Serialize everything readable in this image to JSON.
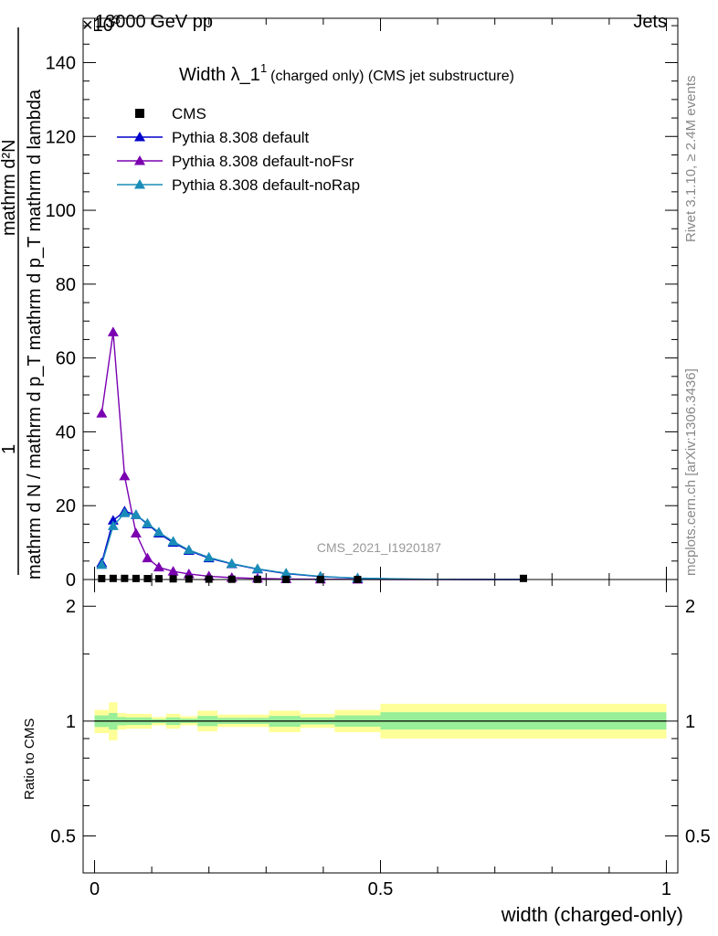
{
  "header": {
    "left": "13000 GeV pp",
    "right": "Jets",
    "exponent": "×10",
    "exponent_power": "3"
  },
  "side_texts": {
    "rivet": "Rivet 3.1.10, ≥ 2.4M events",
    "mcplots": "mcplots.cern.ch [arXiv:1306.3436]"
  },
  "analysis_label": "CMS_2021_I1920187",
  "colors": {
    "cms": "#000000",
    "default": "#0000cc",
    "noFsr": "#7a00b0",
    "noRap": "#1a8cb8",
    "band_outer": "#ffff99",
    "band_inner": "#99ee99",
    "analysis_label": "#999999",
    "side_text": "#888888"
  },
  "chart_data": [
    {
      "type": "line",
      "panel": "main",
      "title_main": "Width λ_1",
      "title_sup": "1",
      "title_rest": "(charged only) (CMS jet substructure)",
      "ylabel_numerator": "1",
      "ylabel_denominator": "mathrm d N / mathrm d p_T mathrm d p_T mathrm d lambda",
      "ylabel_full": "mathrm d²N",
      "ylim": [
        0,
        152
      ],
      "xlim": [
        -0.02,
        1.02
      ],
      "yticks": [
        0,
        20,
        40,
        60,
        80,
        100,
        120,
        140
      ],
      "legend_position": "top-left",
      "series": [
        {
          "name": "CMS",
          "marker": "square",
          "x": [
            0.0125,
            0.0325,
            0.0525,
            0.0725,
            0.0925,
            0.1125,
            0.1375,
            0.165,
            0.2,
            0.24,
            0.285,
            0.335,
            0.395,
            0.46,
            0.75
          ],
          "y": [
            0.25,
            0.3,
            0.3,
            0.28,
            0.25,
            0.22,
            0.18,
            0.14,
            0.1,
            0.07,
            0.05,
            0.03,
            0.02,
            0.01,
            0.3
          ]
        },
        {
          "name": "Pythia 8.308 default",
          "marker": "triangle",
          "x": [
            0.0125,
            0.0325,
            0.0525,
            0.0725,
            0.0925,
            0.1125,
            0.1375,
            0.165,
            0.2,
            0.24,
            0.285,
            0.335,
            0.395,
            0.46,
            0.55,
            0.65,
            0.75
          ],
          "y": [
            4.5,
            16.0,
            18.5,
            17.5,
            15.0,
            12.5,
            10.0,
            7.8,
            5.8,
            4.2,
            2.8,
            1.6,
            0.8,
            0.35,
            0.1,
            0.02,
            0.0
          ]
        },
        {
          "name": "Pythia 8.308 default-noFsr",
          "marker": "triangle",
          "x": [
            0.0125,
            0.0325,
            0.0525,
            0.0725,
            0.0925,
            0.1125,
            0.1375,
            0.165,
            0.2,
            0.24,
            0.285,
            0.335,
            0.395,
            0.46,
            0.55,
            0.65,
            0.75
          ],
          "y": [
            45.0,
            67.0,
            28.0,
            12.5,
            5.8,
            3.3,
            2.2,
            1.5,
            0.9,
            0.5,
            0.3,
            0.15,
            0.07,
            0.03,
            0.01,
            0.0,
            0.0
          ]
        },
        {
          "name": "Pythia 8.308 default-noRap",
          "marker": "triangle",
          "x": [
            0.0125,
            0.0325,
            0.0525,
            0.0725,
            0.0925,
            0.1125,
            0.1375,
            0.165,
            0.2,
            0.24,
            0.285,
            0.335,
            0.395,
            0.46,
            0.55,
            0.65,
            0.75
          ],
          "y": [
            4.0,
            14.5,
            18.0,
            17.5,
            15.2,
            12.8,
            10.3,
            8.0,
            6.0,
            4.3,
            2.9,
            1.7,
            0.85,
            0.38,
            0.12,
            0.03,
            0.0
          ]
        }
      ]
    },
    {
      "type": "area",
      "panel": "ratio",
      "ylabel": "Ratio to CMS",
      "xlabel": "width (charged-only)",
      "ylim": [
        0.4,
        2.35
      ],
      "yscale": "log",
      "yticks": [
        0.5,
        1,
        2
      ],
      "ytick_labels": [
        "0.5",
        "1",
        "2"
      ],
      "xticks": [
        0,
        0.5,
        1
      ],
      "xtick_labels": [
        "0",
        "0.5",
        "1"
      ],
      "bins": [
        {
          "x0": 0.0,
          "x1": 0.025,
          "outer": [
            0.93,
            1.07
          ],
          "inner": [
            0.965,
            1.035
          ]
        },
        {
          "x0": 0.025,
          "x1": 0.04,
          "outer": [
            0.89,
            1.12
          ],
          "inner": [
            0.95,
            1.05
          ]
        },
        {
          "x0": 0.04,
          "x1": 0.055,
          "outer": [
            0.95,
            1.05
          ],
          "inner": [
            0.975,
            1.025
          ]
        },
        {
          "x0": 0.055,
          "x1": 0.1,
          "outer": [
            0.955,
            1.045
          ],
          "inner": [
            0.977,
            1.022
          ]
        },
        {
          "x0": 0.1,
          "x1": 0.125,
          "outer": [
            0.975,
            1.025
          ],
          "inner": [
            0.988,
            1.012
          ]
        },
        {
          "x0": 0.125,
          "x1": 0.15,
          "outer": [
            0.955,
            1.045
          ],
          "inner": [
            0.977,
            1.022
          ]
        },
        {
          "x0": 0.15,
          "x1": 0.18,
          "outer": [
            0.975,
            1.03
          ],
          "inner": [
            0.988,
            1.015
          ]
        },
        {
          "x0": 0.18,
          "x1": 0.215,
          "outer": [
            0.94,
            1.065
          ],
          "inner": [
            0.97,
            1.032
          ]
        },
        {
          "x0": 0.215,
          "x1": 0.265,
          "outer": [
            0.965,
            1.04
          ],
          "inner": [
            0.983,
            1.02
          ]
        },
        {
          "x0": 0.265,
          "x1": 0.305,
          "outer": [
            0.965,
            1.04
          ],
          "inner": [
            0.983,
            1.02
          ]
        },
        {
          "x0": 0.305,
          "x1": 0.36,
          "outer": [
            0.935,
            1.065
          ],
          "inner": [
            0.967,
            1.032
          ]
        },
        {
          "x0": 0.36,
          "x1": 0.42,
          "outer": [
            0.96,
            1.045
          ],
          "inner": [
            0.98,
            1.022
          ]
        },
        {
          "x0": 0.42,
          "x1": 0.5,
          "outer": [
            0.935,
            1.07
          ],
          "inner": [
            0.967,
            1.035
          ]
        },
        {
          "x0": 0.5,
          "x1": 1.0,
          "outer": [
            0.9,
            1.11
          ],
          "inner": [
            0.95,
            1.055
          ]
        }
      ]
    }
  ]
}
